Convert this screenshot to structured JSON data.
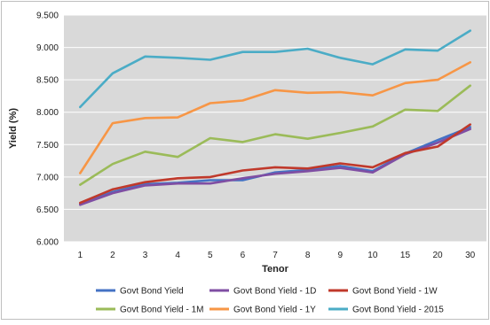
{
  "chart_data": {
    "type": "line",
    "title": "",
    "xlabel": "Tenor",
    "ylabel": "Yield (%)",
    "ylim": [
      6.0,
      9.5
    ],
    "y_ticks": [
      "6.000",
      "6.500",
      "7.000",
      "7.500",
      "8.000",
      "8.500",
      "9.000",
      "9.500"
    ],
    "categories": [
      "1",
      "2",
      "3",
      "4",
      "5",
      "6",
      "7",
      "8",
      "9",
      "10",
      "15",
      "20",
      "30"
    ],
    "grid": "horizontal",
    "plot_background": "#d9d9d9",
    "legend_position": "bottom",
    "series": [
      {
        "name": "Govt Bond Yield",
        "color": "#4472c4",
        "values": [
          6.58,
          6.77,
          6.89,
          6.91,
          6.95,
          6.95,
          7.07,
          7.11,
          7.17,
          7.09,
          7.36,
          7.57,
          7.77
        ]
      },
      {
        "name": "Govt Bond Yield - 1D",
        "color": "#7f4ea3",
        "values": [
          6.57,
          6.75,
          6.87,
          6.9,
          6.9,
          6.98,
          7.05,
          7.09,
          7.14,
          7.07,
          7.35,
          7.53,
          7.74
        ]
      },
      {
        "name": "Govt Bond Yield - 1W",
        "color": "#c0392b",
        "values": [
          6.6,
          6.81,
          6.92,
          6.98,
          7.0,
          7.1,
          7.15,
          7.13,
          7.21,
          7.15,
          7.37,
          7.47,
          7.81
        ]
      },
      {
        "name": "Govt Bond Yield - 1M",
        "color": "#9bbb59",
        "values": [
          6.88,
          7.2,
          7.39,
          7.31,
          7.6,
          7.54,
          7.66,
          7.59,
          7.68,
          7.78,
          8.04,
          8.02,
          8.41
        ]
      },
      {
        "name": "Govt Bond Yield - 1Y",
        "color": "#f79646",
        "values": [
          7.06,
          7.83,
          7.91,
          7.92,
          8.14,
          8.18,
          8.34,
          8.3,
          8.31,
          8.26,
          8.45,
          8.5,
          8.77
        ]
      },
      {
        "name": "Govt Bond Yield - 2015",
        "color": "#4bacc6",
        "values": [
          8.08,
          8.6,
          8.86,
          8.84,
          8.81,
          8.93,
          8.93,
          8.98,
          8.84,
          8.74,
          8.97,
          8.95,
          9.26
        ]
      }
    ]
  }
}
